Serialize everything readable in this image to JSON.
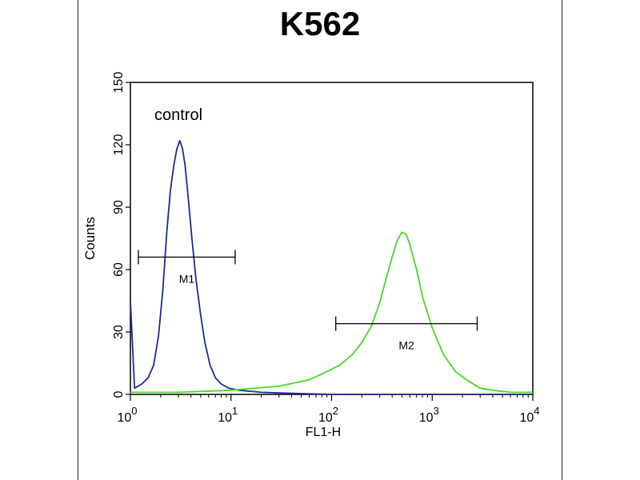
{
  "chart_data": {
    "type": "line",
    "title": "K562",
    "xlabel": "FL1-H",
    "ylabel": "Counts",
    "x_scale": "log",
    "xlim": [
      1,
      10000
    ],
    "ylim": [
      0,
      150
    ],
    "x_ticks": [
      {
        "base": "10",
        "exp": "0",
        "value": 1
      },
      {
        "base": "10",
        "exp": "1",
        "value": 10
      },
      {
        "base": "10",
        "exp": "2",
        "value": 100
      },
      {
        "base": "10",
        "exp": "3",
        "value": 1000
      },
      {
        "base": "10",
        "exp": "4",
        "value": 10000
      }
    ],
    "y_ticks": [
      "0",
      "30",
      "60",
      "90",
      "120",
      "150"
    ],
    "series": [
      {
        "name": "control",
        "color": "#1a2a9c",
        "x": [
          1.0,
          1.1,
          1.3,
          1.5,
          1.7,
          1.9,
          2.1,
          2.3,
          2.5,
          2.7,
          2.9,
          3.1,
          3.3,
          3.5,
          3.8,
          4.1,
          4.5,
          5.0,
          5.5,
          6.2,
          7.0,
          8.0,
          9.5,
          12,
          20,
          40,
          100,
          1000,
          10000
        ],
        "y": [
          45,
          3,
          5,
          8,
          14,
          28,
          50,
          78,
          98,
          110,
          118,
          122,
          118,
          110,
          92,
          74,
          55,
          38,
          25,
          14,
          8,
          5,
          3,
          2,
          1,
          0.5,
          0,
          0,
          0
        ]
      },
      {
        "name": "",
        "color": "#44dd22",
        "x": [
          1.0,
          3,
          10,
          30,
          60,
          90,
          120,
          160,
          200,
          250,
          300,
          350,
          400,
          450,
          500,
          550,
          600,
          700,
          800,
          1000,
          1300,
          1700,
          2200,
          3000,
          4000,
          6000,
          10000
        ],
        "y": [
          1,
          1,
          2,
          4,
          7,
          11,
          14,
          19,
          25,
          33,
          44,
          56,
          66,
          74,
          78,
          77,
          72,
          60,
          47,
          32,
          19,
          11,
          7,
          3,
          2,
          1,
          1
        ]
      }
    ],
    "markers": [
      {
        "label": "M1",
        "x_start": 1.2,
        "x_end": 11,
        "y": 66
      },
      {
        "label": "M2",
        "x_start": 110,
        "x_end": 2800,
        "y": 34
      }
    ],
    "annotations": [
      {
        "text": "control",
        "x": 1.3,
        "y": 133
      }
    ]
  }
}
